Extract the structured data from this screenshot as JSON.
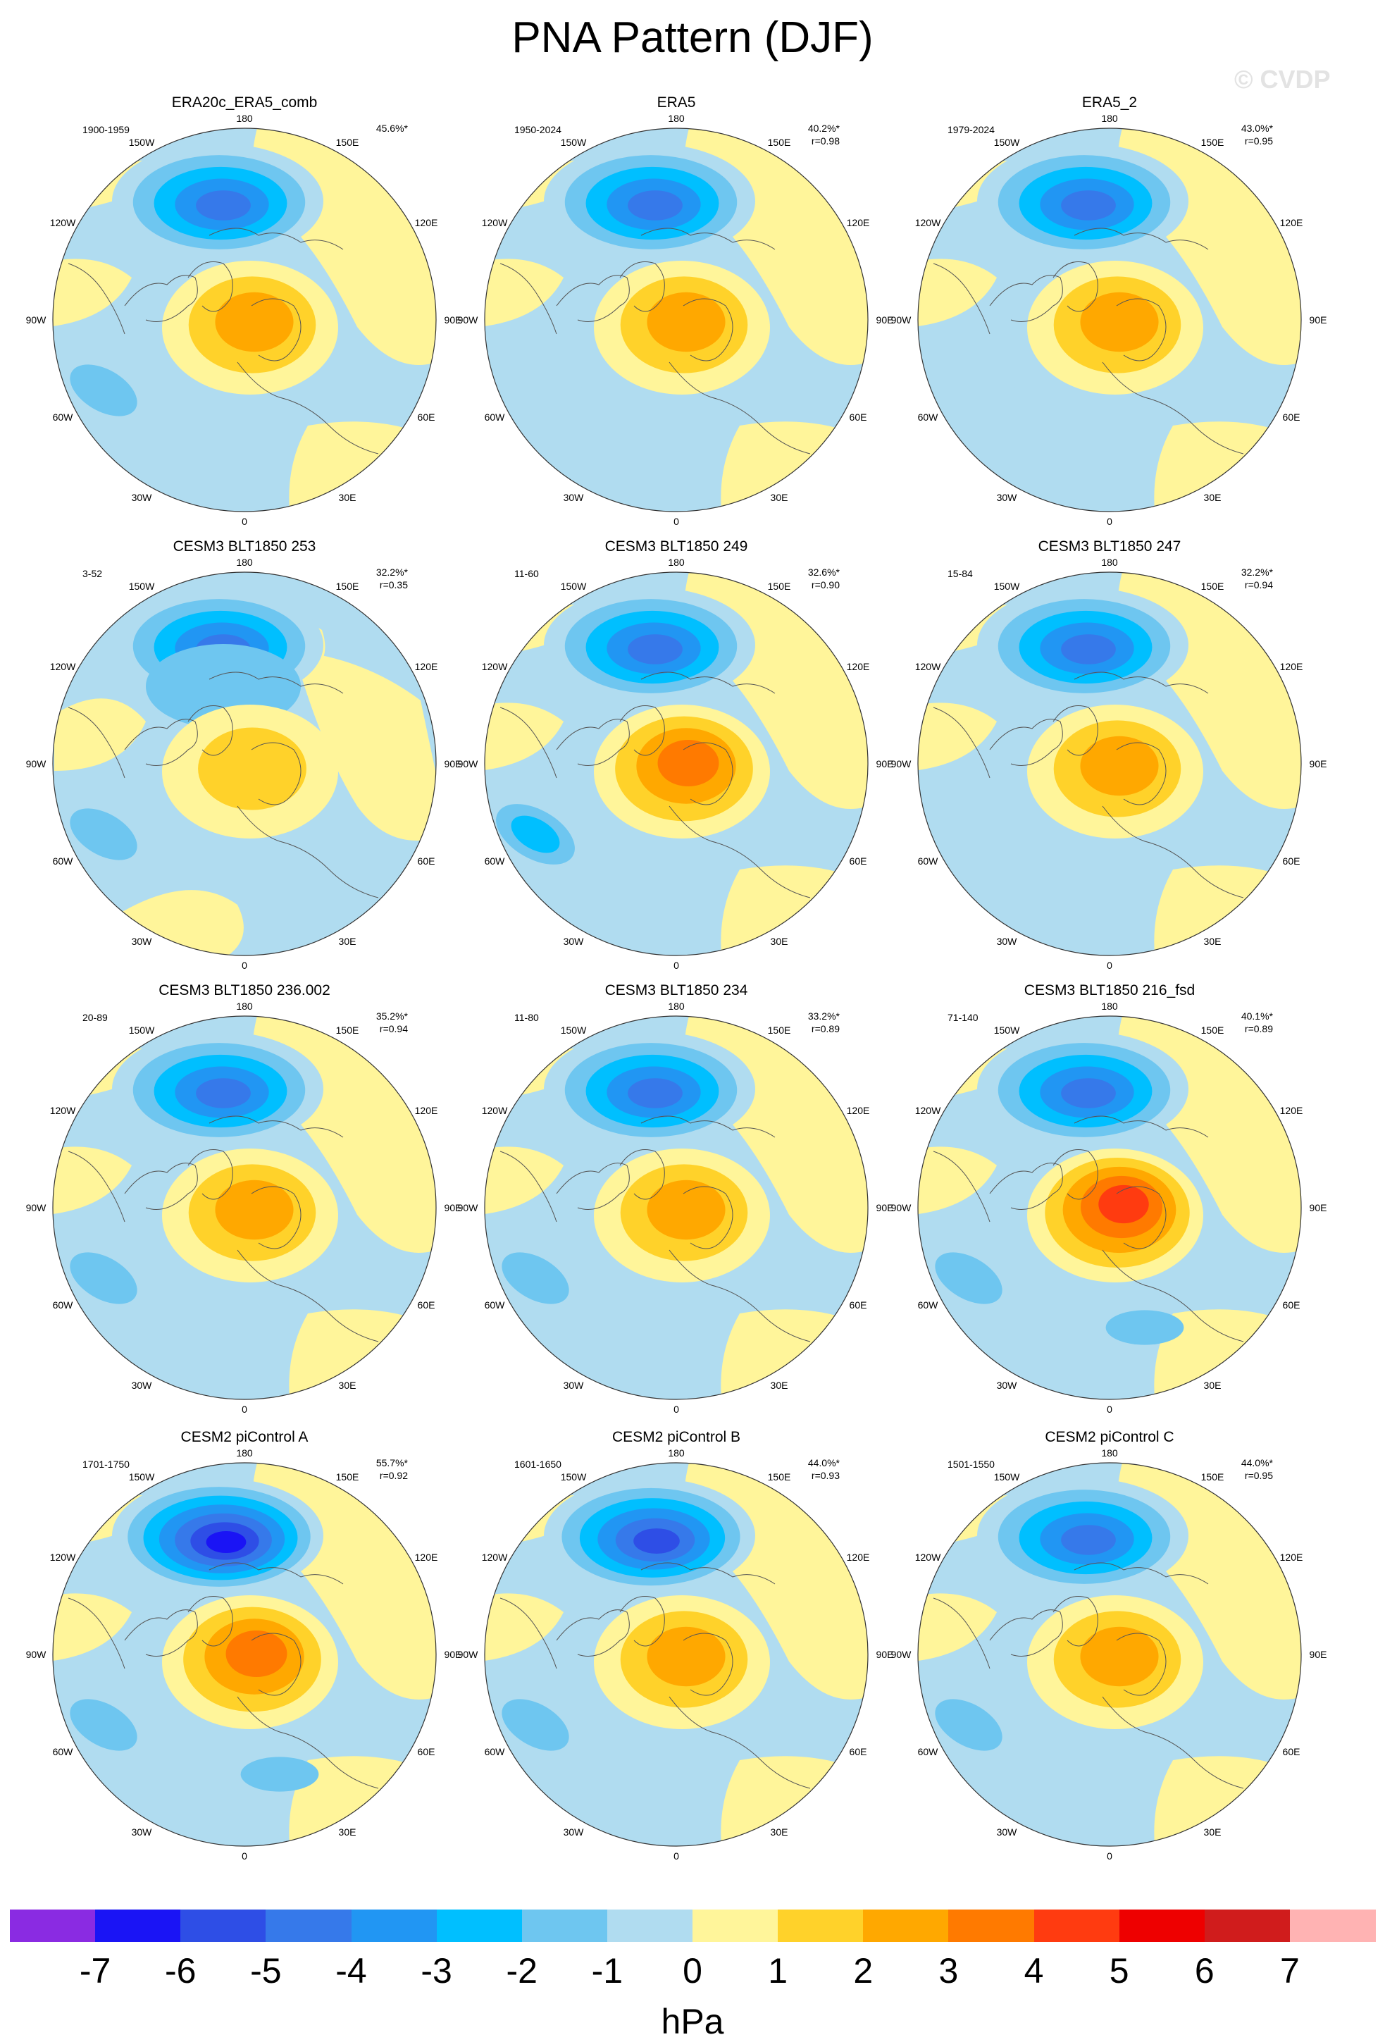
{
  "title": "PNA Pattern (DJF)",
  "watermark": "© CVDP",
  "colorbar": {
    "unit": "hPa",
    "ticks": [
      "-7",
      "-6",
      "-5",
      "-4",
      "-3",
      "-2",
      "-1",
      "0",
      "1",
      "2",
      "3",
      "4",
      "5",
      "6",
      "7"
    ],
    "colors": [
      "#8a2be2",
      "#1a14f5",
      "#2e4ee6",
      "#3679ea",
      "#2196f3",
      "#00bfff",
      "#6ec6f0",
      "#b0dcf0",
      "#fff59a",
      "#ffd22a",
      "#ffa800",
      "#ff7a00",
      "#ff3b10",
      "#ee0000",
      "#d01c1c",
      "#ffb3b3"
    ]
  },
  "longitude_labels": {
    "top": "180",
    "bottom": "0",
    "left": "90W",
    "right": "90E",
    "upper_left_1": "150W",
    "upper_left_2": "120W",
    "upper_right_1": "150E",
    "upper_right_2": "120E",
    "lower_left_1": "60W",
    "lower_left_2": "30W",
    "lower_right_1": "60E",
    "lower_right_2": "30E"
  },
  "panels": [
    {
      "title": "ERA20c_ERA5_comb",
      "years": "1900-1959",
      "pct": "45.6%*",
      "r": "",
      "low": -5,
      "high": 2,
      "pac": -2,
      "atl": -1,
      "style": 0
    },
    {
      "title": "ERA5",
      "years": "1950-2024",
      "pct": "40.2%*",
      "r": "r=0.98",
      "low": -5,
      "high": 2,
      "pac": -1,
      "atl": -1,
      "style": 0
    },
    {
      "title": "ERA5_2",
      "years": "1979-2024",
      "pct": "43.0%*",
      "r": "r=0.95",
      "low": -5,
      "high": 2,
      "pac": -1,
      "atl": -1,
      "style": 0
    },
    {
      "title": "CESM3 BLT1850 253",
      "years": "3-52",
      "pct": "32.2%*",
      "r": "r=0.35",
      "low": -5,
      "high": 1,
      "pac": -2,
      "atl": -1,
      "style": 1
    },
    {
      "title": "CESM3 BLT1850 249",
      "years": "11-60",
      "pct": "32.6%*",
      "r": "r=0.90",
      "low": -5,
      "high": 3,
      "pac": -3,
      "atl": -1,
      "style": 0
    },
    {
      "title": "CESM3 BLT1850 247",
      "years": "15-84",
      "pct": "32.2%*",
      "r": "r=0.94",
      "low": -5,
      "high": 2,
      "pac": -1,
      "atl": -1,
      "style": 0
    },
    {
      "title": "CESM3 BLT1850 236.002",
      "years": "20-89",
      "pct": "35.2%*",
      "r": "r=0.94",
      "low": -5,
      "high": 2,
      "pac": -2,
      "atl": -1,
      "style": 0
    },
    {
      "title": "CESM3 BLT1850 234",
      "years": "11-80",
      "pct": "33.2%*",
      "r": "r=0.89",
      "low": -5,
      "high": 2,
      "pac": -2,
      "atl": -1,
      "style": 0
    },
    {
      "title": "CESM3 BLT1850 216_fsd",
      "years": "71-140",
      "pct": "40.1%*",
      "r": "r=0.89",
      "low": -5,
      "high": 4,
      "pac": -2,
      "atl": -2,
      "style": 0
    },
    {
      "title": "CESM2 piControl A",
      "years": "1701-1750",
      "pct": "55.7%*",
      "r": "r=0.92",
      "low": -7,
      "high": 3,
      "pac": -2,
      "atl": -2,
      "style": 0
    },
    {
      "title": "CESM2 piControl B",
      "years": "1601-1650",
      "pct": "44.0%*",
      "r": "r=0.93",
      "low": -6,
      "high": 2,
      "pac": -2,
      "atl": -1,
      "style": 0
    },
    {
      "title": "CESM2 piControl C",
      "years": "1501-1550",
      "pct": "44.0%*",
      "r": "r=0.95",
      "low": -5,
      "high": 2,
      "pac": -2,
      "atl": -1,
      "style": 0
    }
  ]
}
